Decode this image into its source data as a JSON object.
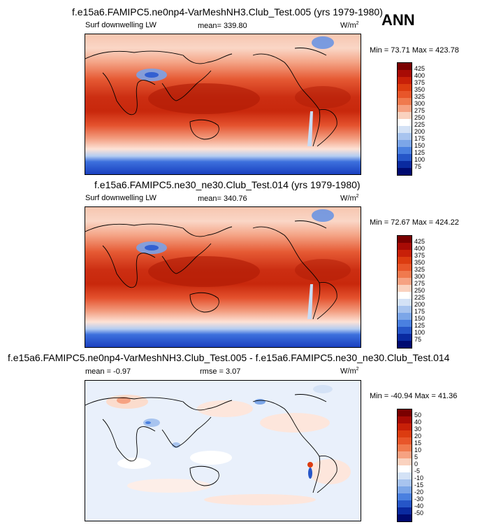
{
  "season": "ANN",
  "panels": [
    {
      "title": "f.e15a6.FAMIPC5.ne0np4-VarMeshNH3.Club_Test.005 (yrs 1979-1980)",
      "variable": "Surf downwelling LW",
      "stat1": "mean=  339.80",
      "stat2": "",
      "units": "W/m",
      "units_exp": "2",
      "minmax": "Min =  73.71 Max = 423.78",
      "colorbar_labels": [
        "425",
        "400",
        "375",
        "350",
        "325",
        "300",
        "275",
        "250",
        "225",
        "200",
        "175",
        "150",
        "125",
        "100",
        "75"
      ],
      "colorbar_colors": [
        "#7a0000",
        "#a80b05",
        "#c82008",
        "#dc3c10",
        "#e8562a",
        "#f07a4e",
        "#f6a282",
        "#fad2bf",
        "#ffffff",
        "#d4e2f6",
        "#a8c4ef",
        "#7ca6e8",
        "#4a80e0",
        "#2656c8",
        "#0a2aa0",
        "#000a70"
      ]
    },
    {
      "title": "f.e15a6.FAMIPC5.ne30_ne30.Club_Test.014 (yrs 1979-1980)",
      "variable": "Surf downwelling LW",
      "stat1": "mean=  340.76",
      "stat2": "",
      "units": "W/m",
      "units_exp": "2",
      "minmax": "Min =  72.67 Max = 424.22",
      "colorbar_labels": [
        "425",
        "400",
        "375",
        "350",
        "325",
        "300",
        "275",
        "250",
        "225",
        "200",
        "175",
        "150",
        "125",
        "100",
        "75"
      ],
      "colorbar_colors": [
        "#7a0000",
        "#a80b05",
        "#c82008",
        "#dc3c10",
        "#e8562a",
        "#f07a4e",
        "#f6a282",
        "#fad2bf",
        "#ffffff",
        "#d4e2f6",
        "#a8c4ef",
        "#7ca6e8",
        "#4a80e0",
        "#2656c8",
        "#0a2aa0",
        "#000a70"
      ]
    },
    {
      "title": "f.e15a6.FAMIPC5.ne0np4-VarMeshNH3.Club_Test.005 - f.e15a6.FAMIPC5.ne30_ne30.Club_Test.014",
      "variable": "",
      "stat1": "mean =  -0.97",
      "stat2": "rmse =   3.07",
      "units": "W/m",
      "units_exp": "2",
      "minmax": "Min = -40.94 Max =  41.36",
      "colorbar_labels": [
        "50",
        "40",
        "30",
        "20",
        "15",
        "10",
        "5",
        "0",
        "-5",
        "-10",
        "-15",
        "-20",
        "-30",
        "-40",
        "-50"
      ],
      "colorbar_colors": [
        "#7a0000",
        "#a80b05",
        "#c82008",
        "#dc3c10",
        "#e8562a",
        "#f07a4e",
        "#f6a282",
        "#fad2bf",
        "#ffffff",
        "#d4e2f6",
        "#a8c4ef",
        "#7ca6e8",
        "#4a80e0",
        "#2656c8",
        "#0a2aa0",
        "#000a70"
      ]
    }
  ],
  "chart_data": [
    {
      "type": "heatmap",
      "title": "f.e15a6.FAMIPC5.ne0np4-VarMeshNH3.Club_Test.005 (yrs 1979-1980)",
      "variable": "Surf downwelling LW",
      "mean": 339.8,
      "min": 73.71,
      "max": 423.78,
      "contour_levels": [
        75,
        100,
        125,
        150,
        175,
        200,
        225,
        250,
        275,
        300,
        325,
        350,
        375,
        400,
        425
      ]
    },
    {
      "type": "heatmap",
      "title": "f.e15a6.FAMIPC5.ne30_ne30.Club_Test.014 (yrs 1979-1980)",
      "variable": "Surf downwelling LW",
      "mean": 340.76,
      "min": 72.67,
      "max": 424.22,
      "contour_levels": [
        75,
        100,
        125,
        150,
        175,
        200,
        225,
        250,
        275,
        300,
        325,
        350,
        375,
        400,
        425
      ]
    },
    {
      "type": "heatmap",
      "title": "f.e15a6.FAMIPC5.ne0np4-VarMeshNH3.Club_Test.005 - f.e15a6.FAMIPC5.ne30_ne30.Club_Test.014",
      "mean": -0.97,
      "rmse": 3.07,
      "min": -40.94,
      "max": 41.36,
      "contour_levels": [
        -50,
        -40,
        -30,
        -20,
        -15,
        -10,
        -5,
        0,
        5,
        10,
        15,
        20,
        30,
        40,
        50
      ]
    }
  ]
}
